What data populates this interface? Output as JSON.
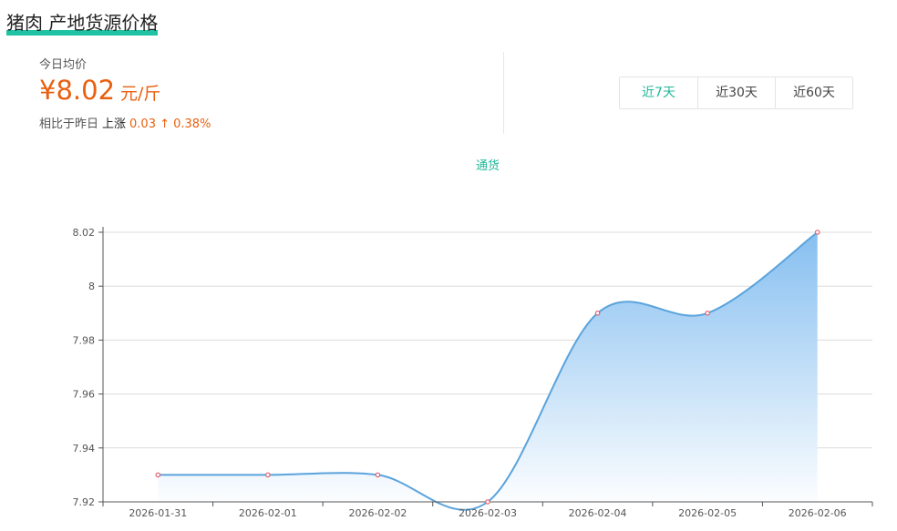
{
  "header": {
    "title": "猪肉 产地货源价格"
  },
  "summary": {
    "avg_label": "今日均价",
    "price": "¥8.02",
    "unit": "元/斤",
    "compare_label": "相比于昨日",
    "trend_word": "上涨",
    "trend_value": "0.03 ↑ 0.38%"
  },
  "range_tabs": [
    {
      "label": "近7天",
      "active": true
    },
    {
      "label": "近30天",
      "active": false
    },
    {
      "label": "近60天",
      "active": false
    }
  ],
  "colors": {
    "accent": "#1fc3a3",
    "price": "#e8600f",
    "line": "#5aa3dc",
    "area_top": "#86bff0",
    "point": "#e06070"
  },
  "chart_data": {
    "type": "area",
    "legend": "通货",
    "legend_placement": "top-center",
    "categories": [
      "2026-01-31",
      "2026-02-01",
      "2026-02-02",
      "2026-02-03",
      "2026-02-04",
      "2026-02-05",
      "2026-02-06"
    ],
    "series": [
      {
        "name": "通货",
        "values": [
          7.93,
          7.93,
          7.93,
          7.92,
          7.99,
          7.99,
          8.02
        ]
      }
    ],
    "ylim": [
      7.92,
      8.02
    ],
    "yticks": [
      7.92,
      7.94,
      7.96,
      7.98,
      8,
      8.02
    ],
    "ytick_labels": [
      "7.92",
      "7.94",
      "7.96",
      "7.98",
      "8",
      "8.02"
    ],
    "grid": true,
    "smooth": true
  }
}
